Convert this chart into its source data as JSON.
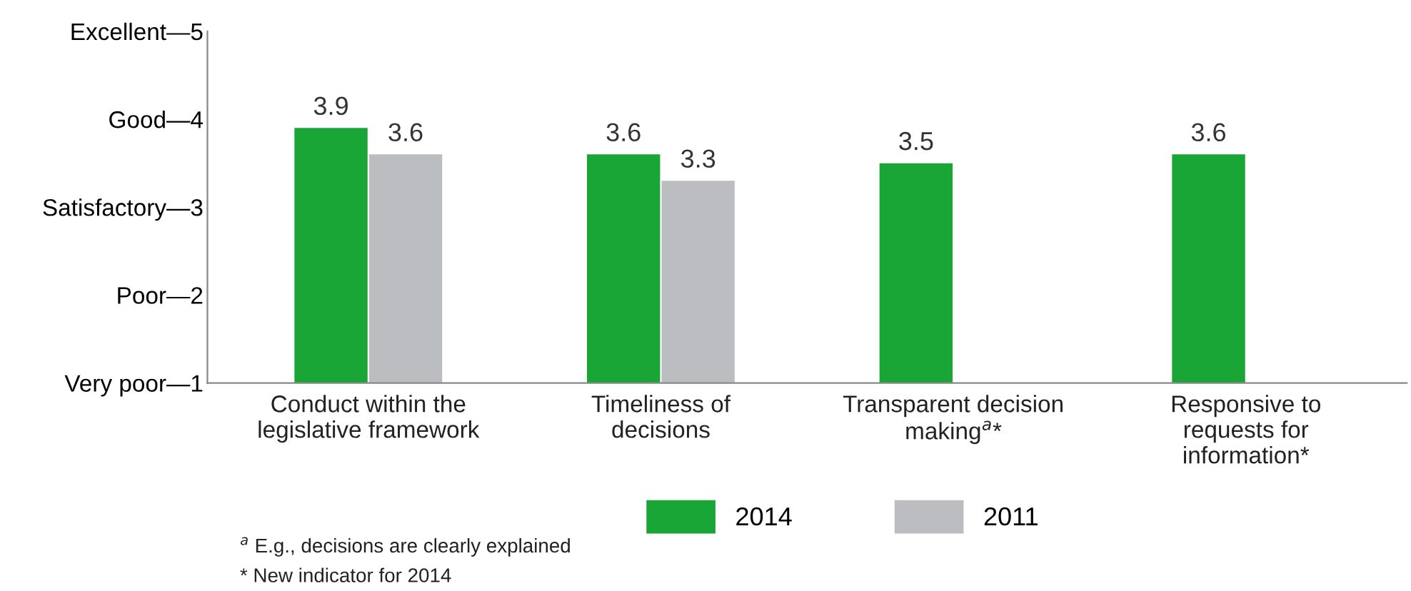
{
  "chart_data": {
    "type": "bar",
    "categories": [
      "Conduct within the\nlegislative framework",
      "Timeliness of\ndecisions",
      "Transparent decision\nmaking$^{a}$*",
      "Responsive to\nrequests for\ninformation*"
    ],
    "series": [
      {
        "name": "2014",
        "color": "#1aa637",
        "values": [
          3.9,
          3.6,
          3.5,
          3.6
        ]
      },
      {
        "name": "2011",
        "color": "#bcbdc1",
        "values": [
          3.6,
          3.3,
          null,
          null
        ]
      }
    ],
    "ylim": [
      1,
      5
    ],
    "yticks": [
      {
        "value": 1,
        "label": "Very poor—1"
      },
      {
        "value": 2,
        "label": "Poor—2"
      },
      {
        "value": 3,
        "label": "Satisfactory—3"
      },
      {
        "value": 4,
        "label": "Good—4"
      },
      {
        "value": 5,
        "label": "Excellent—5"
      }
    ],
    "data_labels": true,
    "grid": false,
    "legend": "bottom",
    "annotations": [
      "$^{a}$ E.g., decisions are clearly explained",
      "* New indicator for 2014"
    ]
  }
}
